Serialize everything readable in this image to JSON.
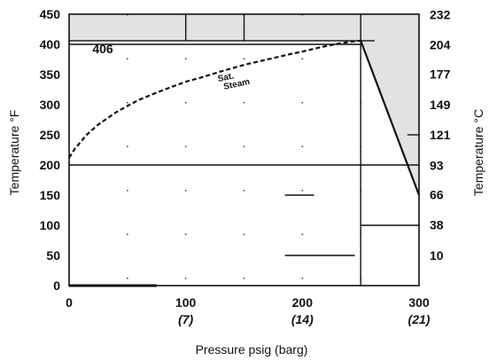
{
  "chart_data": {
    "type": "line",
    "xlabel": "Pressure psig (barg)",
    "ylabel": "Temperature °F",
    "y2label": "Temperature °C",
    "xlim": [
      0,
      300
    ],
    "ylim": [
      0,
      450
    ],
    "x_ticks": [
      {
        "value": 0,
        "label": "0",
        "sublabel": ""
      },
      {
        "value": 100,
        "label": "100",
        "sublabel": "(7)"
      },
      {
        "value": 200,
        "label": "200",
        "sublabel": "(14)"
      },
      {
        "value": 300,
        "label": "300",
        "sublabel": "(21)"
      }
    ],
    "y_ticks": [
      {
        "value": 0,
        "label": "0"
      },
      {
        "value": 50,
        "label": "50"
      },
      {
        "value": 100,
        "label": "100"
      },
      {
        "value": 150,
        "label": "150"
      },
      {
        "value": 200,
        "label": "200"
      },
      {
        "value": 250,
        "label": "250"
      },
      {
        "value": 300,
        "label": "300"
      },
      {
        "value": 350,
        "label": "350"
      },
      {
        "value": 400,
        "label": "400"
      },
      {
        "value": 450,
        "label": "450"
      }
    ],
    "y2_ticks": [
      {
        "value": 10,
        "label": "10"
      },
      {
        "value": 38,
        "label": "38"
      },
      {
        "value": 66,
        "label": "66"
      },
      {
        "value": 93,
        "label": "93"
      },
      {
        "value": 121,
        "label": "121"
      },
      {
        "value": 149,
        "label": "149"
      },
      {
        "value": 177,
        "label": "177"
      },
      {
        "value": 204,
        "label": "204"
      },
      {
        "value": 232,
        "label": "232"
      }
    ],
    "series": [
      {
        "style": "dashed",
        "x": [
          0,
          5,
          15,
          25,
          40,
          50,
          60,
          75,
          90,
          100,
          115,
          130,
          150,
          170,
          190,
          200,
          215,
          230,
          240,
          250
        ],
        "y": [
          212,
          227,
          250,
          267,
          287,
          298,
          308,
          320,
          331,
          338,
          346,
          355,
          366,
          375,
          384,
          388,
          395,
          401,
          404,
          406
        ]
      },
      {
        "style": "solid",
        "x": [
          250,
          300
        ],
        "y": [
          406,
          150
        ]
      }
    ],
    "shaded_region": {
      "x": [
        0,
        250,
        300,
        300,
        0
      ],
      "y": [
        406,
        406,
        150,
        450,
        450
      ],
      "color": "#e2e2e2"
    },
    "reference_lines": [
      {
        "axis": "y",
        "value": 200,
        "x_range": [
          0,
          300
        ]
      },
      {
        "axis": "y",
        "value": 406,
        "x_range": [
          0,
          262
        ]
      },
      {
        "axis": "y",
        "value": 400,
        "x_range": [
          0,
          250
        ]
      },
      {
        "axis": "x",
        "value": 250,
        "y_range": [
          0,
          450
        ]
      },
      {
        "axis": "x",
        "value": 150,
        "y_range": [
          406,
          450
        ]
      },
      {
        "axis": "x",
        "value": 100,
        "y_range": [
          406,
          450
        ]
      },
      {
        "axis": "y",
        "value": 100,
        "x_range": [
          250,
          300
        ]
      },
      {
        "axis": "y",
        "value": 250,
        "x_range": [
          290,
          300
        ]
      },
      {
        "axis": "y",
        "value": 50,
        "x_range": [
          185,
          245
        ]
      },
      {
        "axis": "y",
        "value": 150,
        "x_range": [
          185,
          210
        ]
      }
    ],
    "annotations": [
      {
        "text": "406",
        "x": 20,
        "y": 385,
        "size": "big"
      },
      {
        "text": "Sat.",
        "x": 128,
        "y": 338,
        "size": "small",
        "rotate": -12
      },
      {
        "text": "Steam",
        "x": 133,
        "y": 325,
        "size": "small",
        "rotate": -12
      }
    ],
    "grid": "dotted",
    "colors": {
      "line": "#111111",
      "grid": "#444444"
    }
  }
}
